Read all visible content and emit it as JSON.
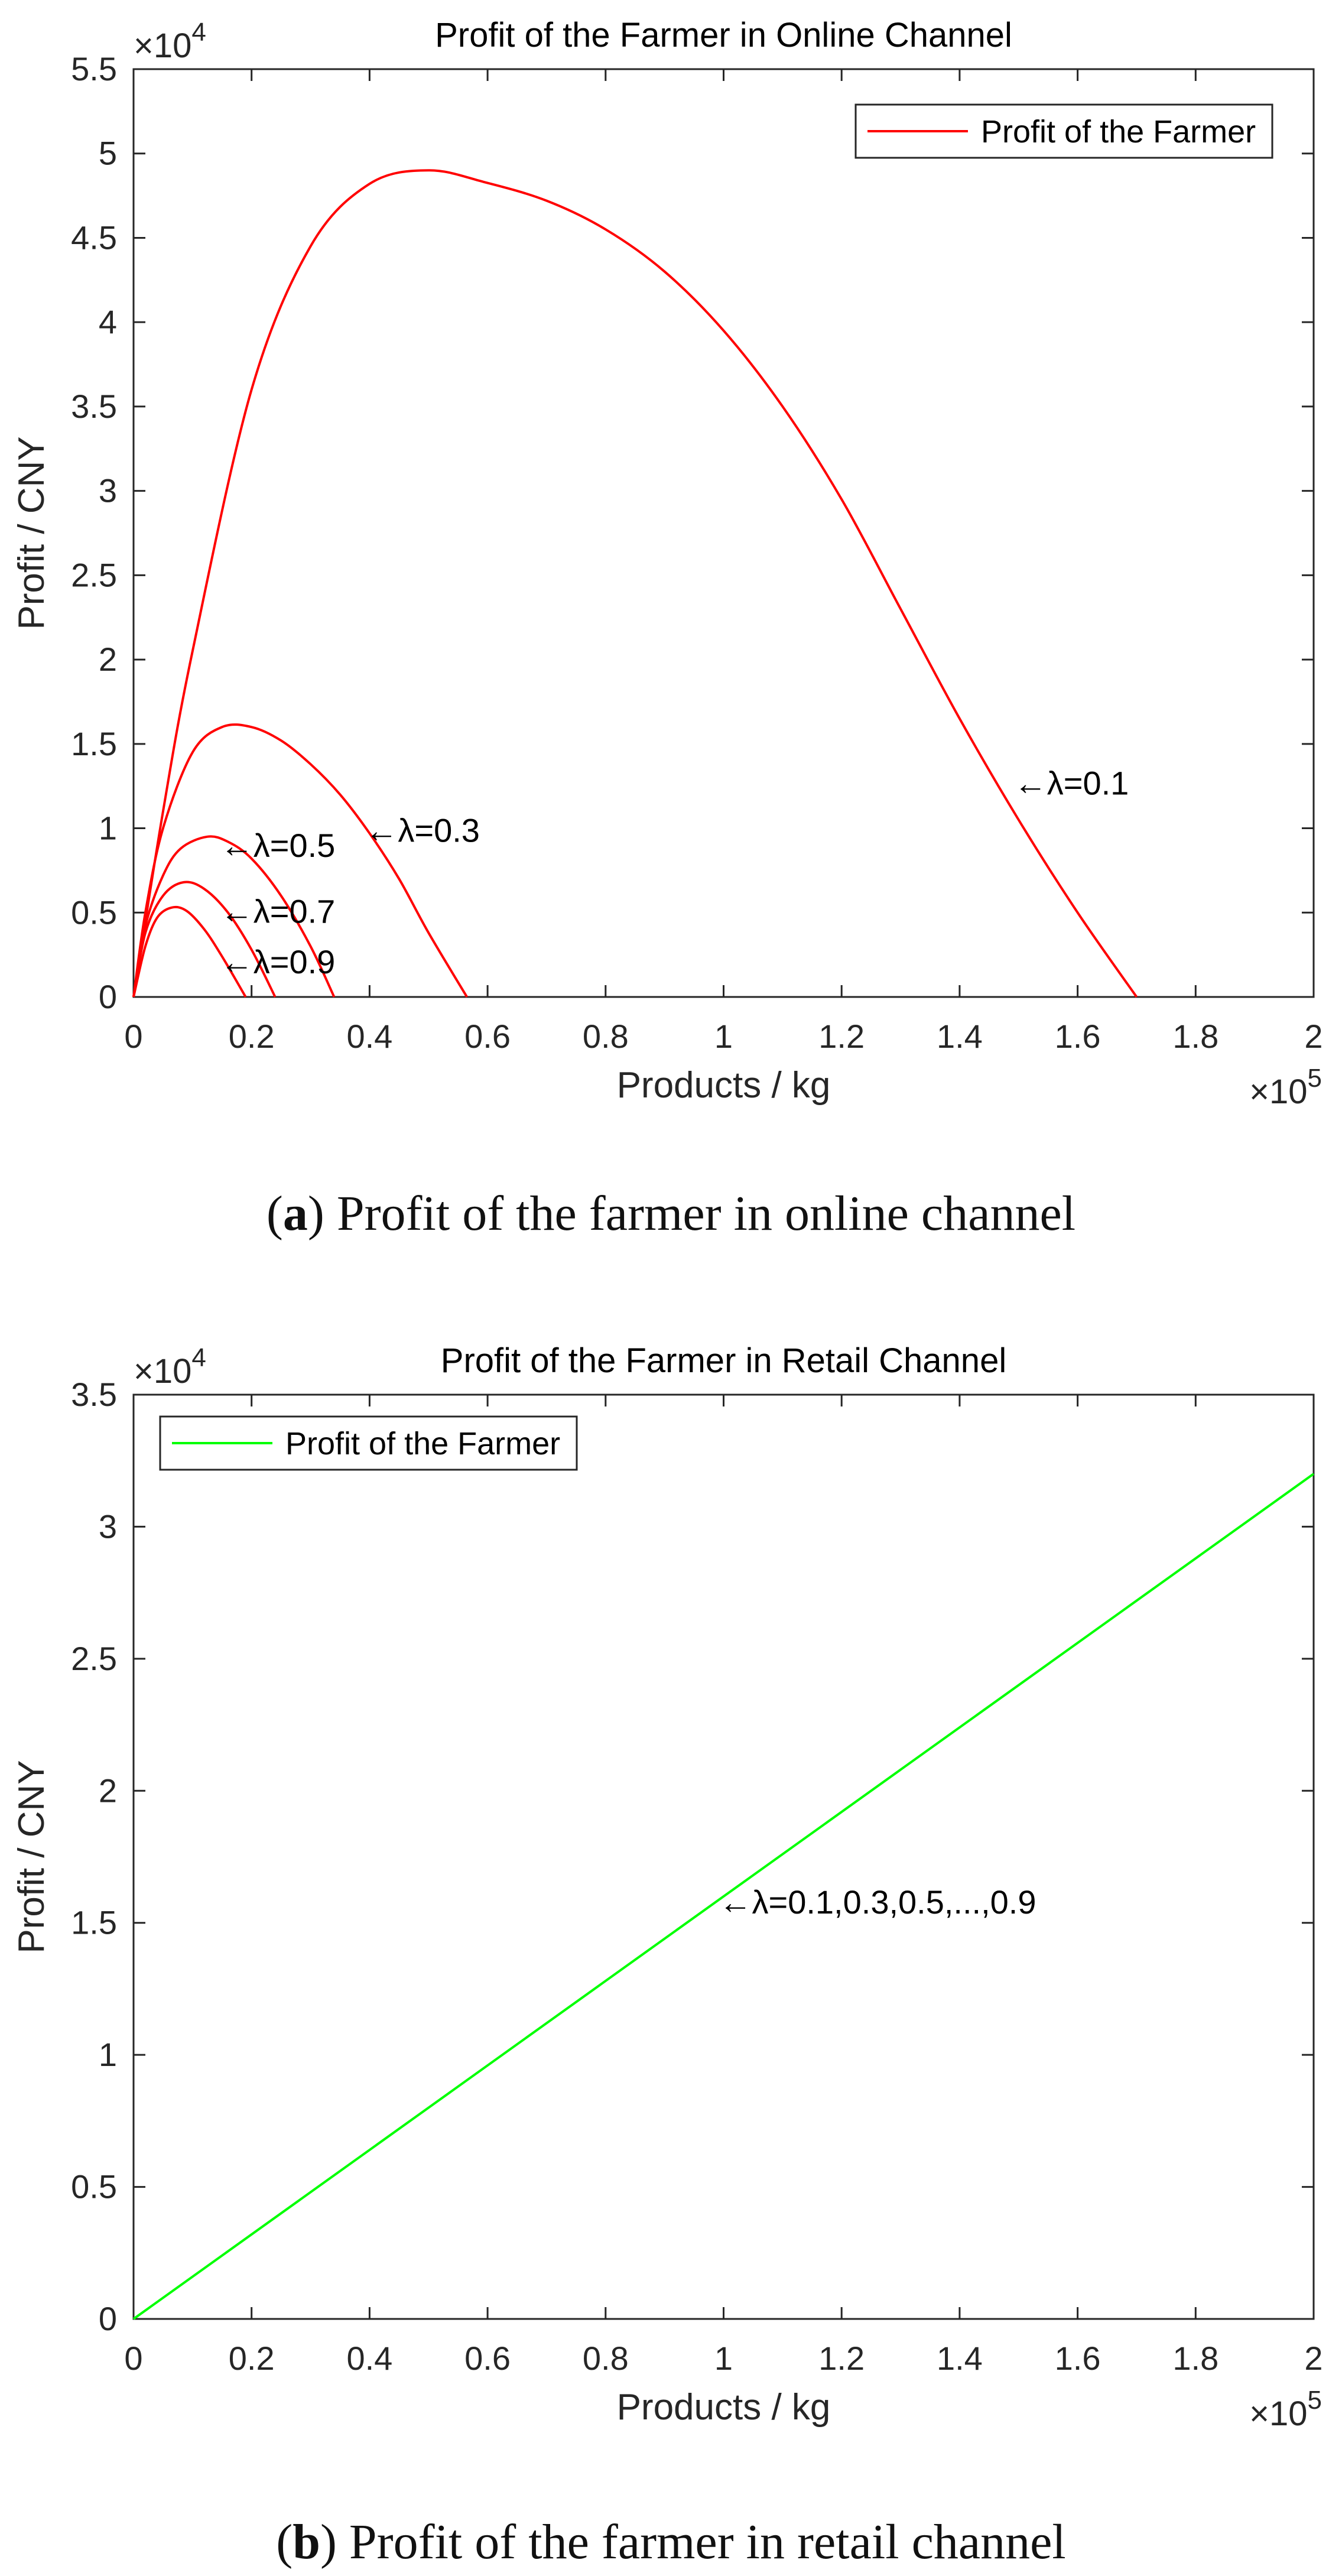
{
  "chart_data": [
    {
      "type": "line",
      "title": "Profit of the Farmer in Online Channel",
      "xlabel": "Products / kg",
      "ylabel": "Profit / CNY",
      "x_multiplier": "×10",
      "x_multiplier_exp": "5",
      "y_multiplier": "×10",
      "y_multiplier_exp": "4",
      "xlim": [
        0,
        2
      ],
      "ylim": [
        0,
        5.5
      ],
      "xticks": [
        "0",
        "0.2",
        "0.4",
        "0.6",
        "0.8",
        "1",
        "1.2",
        "1.4",
        "1.6",
        "1.8",
        "2"
      ],
      "xtick_values": [
        0,
        0.2,
        0.4,
        0.6,
        0.8,
        1,
        1.2,
        1.4,
        1.6,
        1.8,
        2
      ],
      "yticks": [
        "0",
        "0.5",
        "1",
        "1.5",
        "2",
        "2.5",
        "3",
        "3.5",
        "4",
        "4.5",
        "5",
        "5.5"
      ],
      "ytick_values": [
        0,
        0.5,
        1,
        1.5,
        2,
        2.5,
        3,
        3.5,
        4,
        4.5,
        5,
        5.5
      ],
      "legend": {
        "label": "Profit of the Farmer",
        "location": "top-right"
      },
      "color": "#ff0000",
      "series": [
        {
          "lambda": 0.1,
          "x": [
            0,
            0.05,
            0.1,
            0.2,
            0.3,
            0.4,
            0.5,
            0.595,
            0.7,
            0.8,
            0.9,
            1.0,
            1.1,
            1.2,
            1.3,
            1.4,
            1.5,
            1.6,
            1.7
          ],
          "y": [
            0,
            1.1,
            2.05,
            3.6,
            4.45,
            4.82,
            4.9,
            4.83,
            4.72,
            4.55,
            4.3,
            3.95,
            3.5,
            2.95,
            2.3,
            1.65,
            1.05,
            0.5,
            0
          ]
        },
        {
          "lambda": 0.3,
          "x": [
            0,
            0.02,
            0.05,
            0.1,
            0.15,
            0.2,
            0.25,
            0.3,
            0.35,
            0.4,
            0.45,
            0.5,
            0.565
          ],
          "y": [
            0,
            0.5,
            1.0,
            1.45,
            1.6,
            1.6,
            1.52,
            1.38,
            1.2,
            0.97,
            0.7,
            0.38,
            0
          ]
        },
        {
          "lambda": 0.5,
          "x": [
            0,
            0.02,
            0.05,
            0.08,
            0.125,
            0.16,
            0.2,
            0.25,
            0.3,
            0.34
          ],
          "y": [
            0,
            0.42,
            0.72,
            0.88,
            0.95,
            0.92,
            0.82,
            0.6,
            0.3,
            0
          ]
        },
        {
          "lambda": 0.7,
          "x": [
            0,
            0.02,
            0.05,
            0.085,
            0.12,
            0.16,
            0.2,
            0.24
          ],
          "y": [
            0,
            0.38,
            0.6,
            0.68,
            0.64,
            0.5,
            0.28,
            0
          ]
        },
        {
          "lambda": 0.9,
          "x": [
            0,
            0.02,
            0.04,
            0.065,
            0.09,
            0.12,
            0.15,
            0.19
          ],
          "y": [
            0,
            0.3,
            0.47,
            0.53,
            0.51,
            0.4,
            0.24,
            0
          ]
        }
      ],
      "annotations": [
        {
          "text": "←λ=0.1",
          "x": 1.5,
          "y": 1.27
        },
        {
          "text": "←λ=0.3",
          "x": 0.4,
          "y": 0.99
        },
        {
          "text": "←λ=0.5",
          "x": 0.155,
          "y": 0.9
        },
        {
          "text": "←λ=0.7",
          "x": 0.155,
          "y": 0.51
        },
        {
          "text": "←λ=0.9",
          "x": 0.155,
          "y": 0.21
        }
      ],
      "caption_letter": "a",
      "caption_text": "Profit of the farmer in online channel"
    },
    {
      "type": "line",
      "title": "Profit of the Farmer in Retail Channel",
      "xlabel": "Products / kg",
      "ylabel": "Profit / CNY",
      "x_multiplier": "×10",
      "x_multiplier_exp": "5",
      "y_multiplier": "×10",
      "y_multiplier_exp": "4",
      "xlim": [
        0,
        2
      ],
      "ylim": [
        0,
        3.5
      ],
      "xticks": [
        "0",
        "0.2",
        "0.4",
        "0.6",
        "0.8",
        "1",
        "1.2",
        "1.4",
        "1.6",
        "1.8",
        "2"
      ],
      "xtick_values": [
        0,
        0.2,
        0.4,
        0.6,
        0.8,
        1,
        1.2,
        1.4,
        1.6,
        1.8,
        2
      ],
      "yticks": [
        "0",
        "0.5",
        "1",
        "1.5",
        "2",
        "2.5",
        "3",
        "3.5"
      ],
      "ytick_values": [
        0,
        0.5,
        1,
        1.5,
        2,
        2.5,
        3,
        3.5
      ],
      "legend": {
        "label": "Profit of the Farmer",
        "location": "top-left"
      },
      "color": "#00ff00",
      "series": [
        {
          "lambda": "0.1,0.3,0.5,...,0.9",
          "x": [
            0,
            2
          ],
          "y": [
            0,
            3.2
          ]
        }
      ],
      "annotations": [
        {
          "text": "←λ=0.1,0.3,0.5,...,0.9",
          "x": 1.0,
          "y": 1.58
        }
      ],
      "caption_letter": "b",
      "caption_text": "Profit of the farmer in retail channel"
    }
  ]
}
